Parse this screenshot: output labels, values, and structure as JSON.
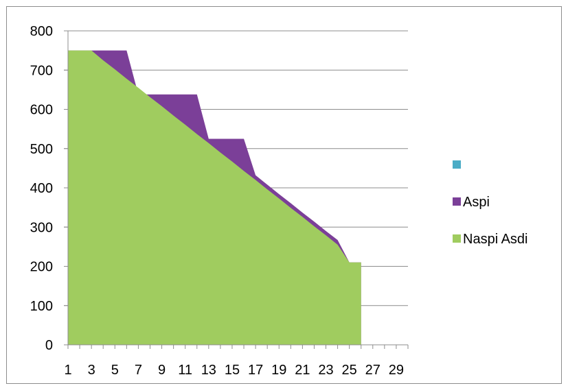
{
  "chart_data": {
    "type": "area",
    "x": [
      1,
      2,
      3,
      4,
      5,
      6,
      7,
      8,
      9,
      10,
      11,
      12,
      13,
      14,
      15,
      16,
      17,
      18,
      19,
      20,
      21,
      22,
      23,
      24,
      25,
      26
    ],
    "ylim": [
      0,
      800
    ],
    "xlim": [
      1,
      30
    ],
    "y_ticks": [
      "0",
      "100",
      "200",
      "300",
      "400",
      "500",
      "600",
      "700",
      "800"
    ],
    "x_ticks": [
      "1",
      "3",
      "5",
      "7",
      "9",
      "11",
      "13",
      "15",
      "17",
      "19",
      "21",
      "23",
      "25",
      "27",
      "29"
    ],
    "grid": true,
    "legend_position": "right",
    "series": [
      {
        "name": "Aspi",
        "color": "#7b3f98",
        "values": [
          750,
          750,
          750,
          750,
          750,
          750,
          638,
          638,
          638,
          638,
          638,
          638,
          525,
          525,
          525,
          525,
          432,
          408,
          384,
          361,
          337,
          314,
          290,
          267,
          210,
          210
        ]
      },
      {
        "name": "Naspi  Asdi",
        "color": "#a0cc5f",
        "values": [
          750,
          750,
          750,
          725,
          702,
          678,
          655,
          631,
          608,
          584,
          561,
          537,
          514,
          490,
          467,
          443,
          420,
          396,
          373,
          349,
          326,
          302,
          279,
          255,
          210,
          210
        ]
      }
    ],
    "legend": [
      {
        "label": "",
        "color": "#4bacc6"
      },
      {
        "label": "Aspi",
        "color": "#7b3f98"
      },
      {
        "label": "Naspi  Asdi",
        "color": "#a0cc5f"
      }
    ]
  }
}
